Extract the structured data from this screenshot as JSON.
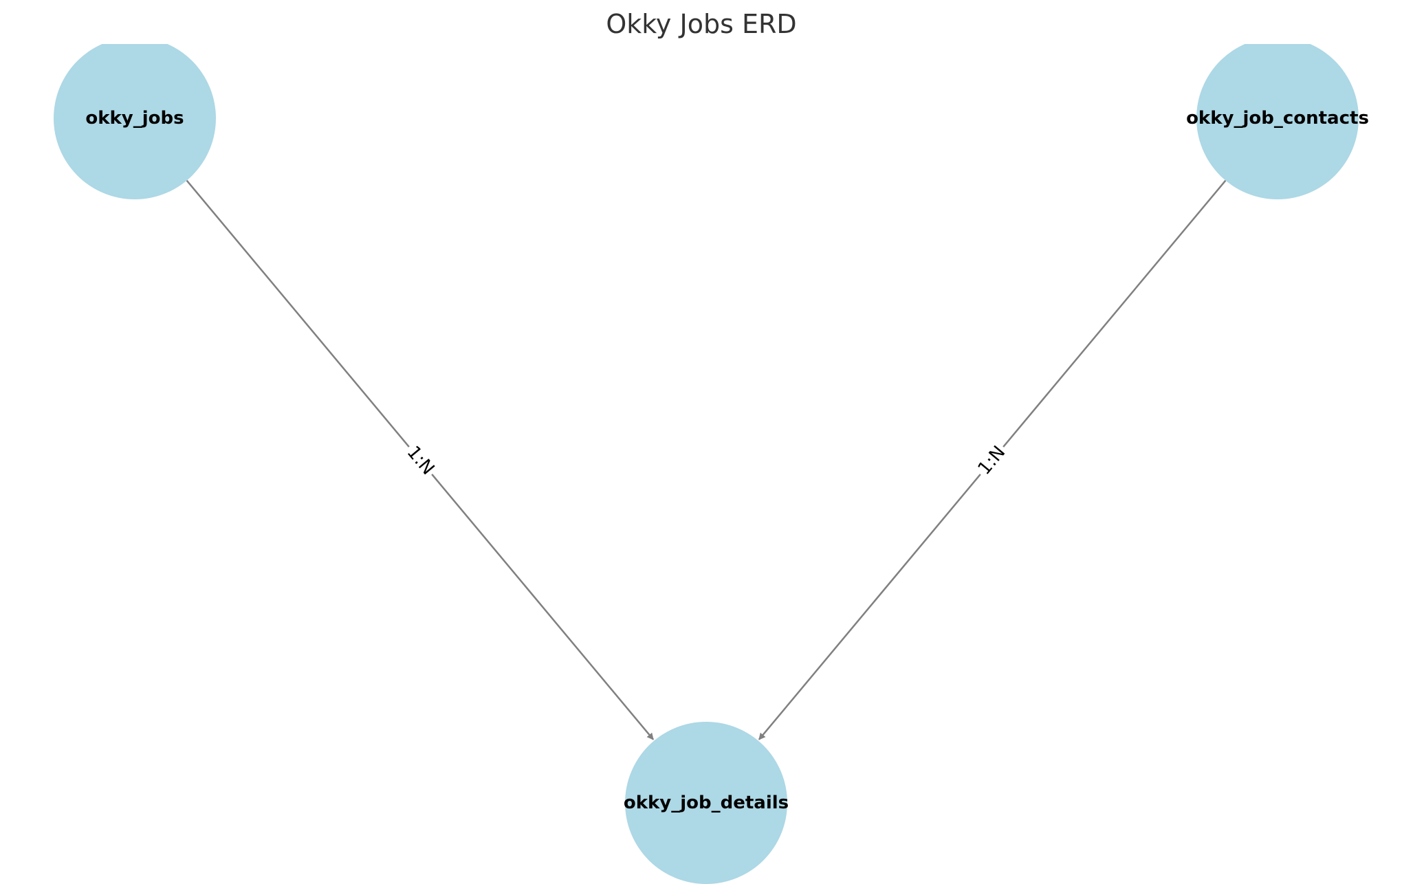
{
  "title": "Okky Jobs ERD",
  "colors": {
    "node_fill": "#add8e6",
    "edge_stroke": "#808080",
    "label_bg": "#ffffff"
  },
  "nodes": [
    {
      "id": "okky_jobs",
      "label": "okky_jobs"
    },
    {
      "id": "okky_job_contacts",
      "label": "okky_job_contacts"
    },
    {
      "id": "okky_job_details",
      "label": "okky_job_details"
    }
  ],
  "edges": [
    {
      "from": "okky_jobs",
      "to": "okky_job_details",
      "label": "1:N"
    },
    {
      "from": "okky_job_contacts",
      "to": "okky_job_details",
      "label": "1:N"
    }
  ]
}
